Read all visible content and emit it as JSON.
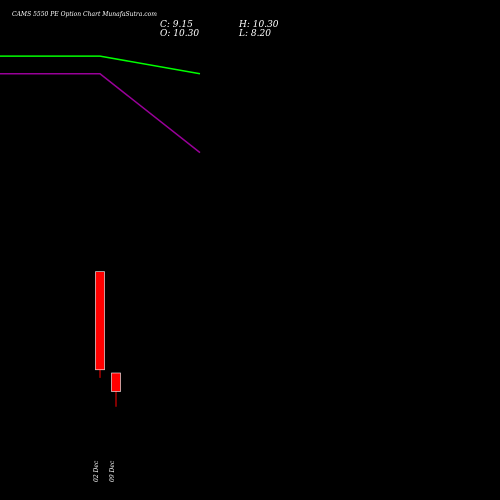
{
  "chart_data": {
    "type": "candlestick",
    "title": "CAMS 5550  PE Option  Chart MunafaSutra.com",
    "ohlc_readout": {
      "C": "9.15",
      "H": "10.30",
      "O": "10.30",
      "L": "8.20"
    },
    "candles": [
      {
        "date": "02 Dec",
        "open": 16.6,
        "high": 16.6,
        "low": 10.0,
        "close": 10.5,
        "color": "#ff0000"
      },
      {
        "date": "09 Dec",
        "open": 10.3,
        "high": 10.3,
        "low": 8.2,
        "close": 9.15,
        "color": "#ff0000"
      }
    ],
    "series": [
      {
        "color": "#00ff00",
        "values": [
          30.0,
          30.0,
          28.9
        ]
      },
      {
        "color": "#990099",
        "values": [
          28.9,
          28.9,
          24.0
        ]
      }
    ],
    "y_range": [
      8,
      31
    ],
    "colors": {
      "background": "#000000",
      "text": "#ffffff",
      "down_candle": "#ff0000"
    }
  }
}
